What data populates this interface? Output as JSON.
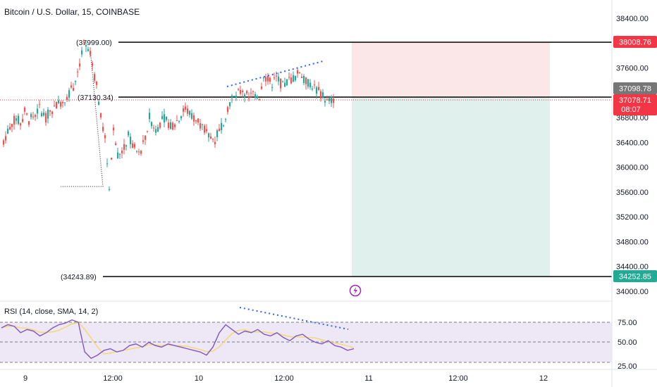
{
  "header": {
    "symbol_title": "Bitcoin / U.S. Dollar, 15, COINBASE"
  },
  "colors": {
    "up": "#26a69a",
    "down": "#ef5350",
    "border_up": "#089981",
    "border_down": "#f23645",
    "level_line": "#000000",
    "trend_line": "#2962ff",
    "rsi_line": "#7e57c2",
    "rsi_sma": "#f5d76e",
    "rsi_band": "#ede7f6",
    "stop_zone": "#fbe7e8",
    "target_zone": "#e0f0ec",
    "price_red": "#f23645",
    "price_grey": "#777777",
    "price_green": "#22ab94",
    "lightning": "#9c27b0"
  },
  "price_axis": {
    "ticks": [
      "38400.00",
      "38000.00",
      "37600.00",
      "36800.00",
      "36400.00",
      "36000.00",
      "35600.00",
      "35200.00",
      "34800.00",
      "34400.00",
      "34000.00"
    ],
    "labels": {
      "stop": "38008.76",
      "entry": "37098.78",
      "last": "37078.71",
      "countdown": "08:07",
      "target": "34252.85"
    }
  },
  "level_labels": {
    "high": "(37999.00)",
    "mid": "(37130.34)",
    "low": "(34243.89)"
  },
  "rsi": {
    "title": "RSI (14, close, SMA, 14, 2)",
    "ticks": [
      "75.00",
      "50.00",
      "25.00"
    ]
  },
  "time_axis": {
    "ticks": [
      "9",
      "12:00",
      "10",
      "12:00",
      "11",
      "12:00",
      "12"
    ]
  },
  "chart_data": {
    "type": "candlestick",
    "title": "Bitcoin / U.S. Dollar, 15, COINBASE",
    "y_range": [
      34000,
      38500
    ],
    "levels": [
      {
        "label": "(37999.00)",
        "value": 37999.0
      },
      {
        "label": "(37130.34)",
        "value": 37130.34
      },
      {
        "label": "(34243.89)",
        "value": 34243.89
      }
    ],
    "position": {
      "entry": 37098.78,
      "stop": 38008.76,
      "target": 34252.85,
      "side": "short"
    },
    "price_path": [
      36350,
      36500,
      36650,
      36800,
      36700,
      36900,
      36750,
      36850,
      36950,
      36800,
      36900,
      37000,
      37050,
      37100,
      37200,
      37300,
      37550,
      37950,
      37800,
      37300,
      36800,
      36450,
      35700,
      36600,
      36200,
      36300,
      36500,
      36350,
      36200,
      36450,
      36800,
      36600,
      36700,
      36800,
      36650,
      36750,
      36850,
      36950,
      36850,
      36800,
      36750,
      36650,
      36500,
      36450,
      36600,
      36750,
      37050,
      37150,
      37250,
      37100,
      37200,
      37150,
      37500,
      37400,
      37350,
      37450,
      37300,
      37400,
      37450,
      37550,
      37400,
      37350,
      37250,
      37150,
      37050,
      37100
    ],
    "rsi_path": [
      68,
      72,
      70,
      62,
      66,
      64,
      58,
      62,
      68,
      72,
      74,
      78,
      75,
      38,
      30,
      34,
      40,
      42,
      38,
      40,
      46,
      48,
      44,
      50,
      46,
      44,
      48,
      46,
      44,
      42,
      40,
      38,
      34,
      44,
      62,
      72,
      66,
      60,
      64,
      62,
      66,
      60,
      58,
      62,
      56,
      52,
      58,
      60,
      54,
      50,
      48,
      52,
      46,
      44,
      40,
      42
    ],
    "rsi_range": [
      25,
      75
    ]
  }
}
